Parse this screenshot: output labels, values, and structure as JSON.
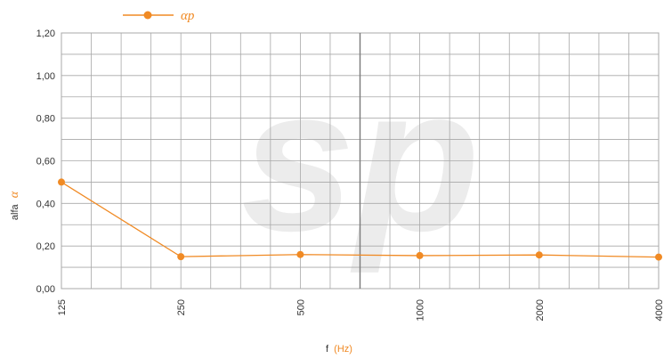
{
  "watermark": "sp",
  "colors": {
    "series": "#f08a24",
    "grid": "#a8a8a8",
    "major_grid": "#7a7a7a",
    "watermark": "#ececec"
  },
  "chart_data": {
    "type": "line",
    "categories": [
      "125",
      "250",
      "500",
      "1000",
      "2000",
      "4000"
    ],
    "ytick_labels": [
      "0,00",
      "0,20",
      "0,40",
      "0,60",
      "0,80",
      "1,00",
      "1,20"
    ],
    "ylim": [
      0,
      1.2
    ],
    "grid": true,
    "legend_position": "top-left",
    "xlabel_main": "f",
    "xlabel_unit": "(Hz)",
    "ylabel_main": "alfa",
    "ylabel_symbol": "α",
    "series": [
      {
        "name": "αp",
        "values": [
          0.5,
          0.15,
          0.16,
          0.155,
          0.158,
          0.148
        ]
      }
    ]
  }
}
